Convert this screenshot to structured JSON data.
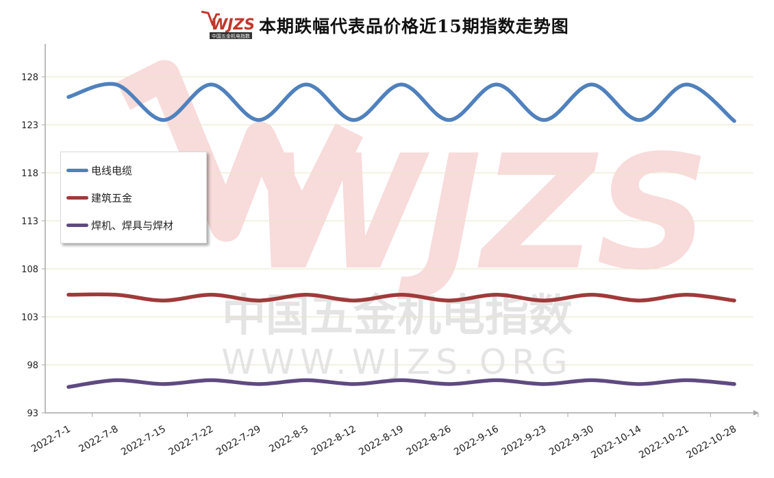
{
  "title": "本期跌幅代表品价格近15期指数走势图",
  "logo": {
    "brand": "WJZS",
    "subtitle": "中国五金机电指数",
    "url": "WWW.WJZS.ORG"
  },
  "watermark": {
    "brand": "WJZS",
    "line1": "中国五金机电指数",
    "line2": "WWW.WJZS.ORG"
  },
  "colors": {
    "axis": "#a6a6a6",
    "grid": "#e7e4c8",
    "tick_text": "#222222"
  },
  "chart_data": {
    "type": "line",
    "categories": [
      "2022-7-1",
      "2022-7-8",
      "2022-7-15",
      "2022-7-22",
      "2022-7-29",
      "2022-8-5",
      "2022-8-12",
      "2022-8-19",
      "2022-8-26",
      "2022-9-16",
      "2022-9-23",
      "2022-9-30",
      "2022-10-14",
      "2022-10-21",
      "2022-10-28"
    ],
    "ylim": [
      93,
      131
    ],
    "yticks": [
      93,
      98,
      103,
      108,
      113,
      118,
      123,
      128
    ],
    "grid": true,
    "legend_position": "left",
    "series": [
      {
        "name": "电线电缆",
        "color": "#4f81bd",
        "values": [
          125.9,
          127.2,
          123.5,
          127.2,
          123.5,
          127.2,
          123.5,
          127.2,
          123.5,
          127.2,
          123.5,
          127.2,
          123.5,
          127.2,
          123.4
        ]
      },
      {
        "name": "建筑五金",
        "color": "#a03a3a",
        "values": [
          105.3,
          105.3,
          104.7,
          105.3,
          104.7,
          105.3,
          104.7,
          105.3,
          104.7,
          105.3,
          104.7,
          105.3,
          104.7,
          105.3,
          104.7
        ]
      },
      {
        "name": "焊机、焊具与焊材",
        "color": "#5f4a80",
        "values": [
          95.7,
          96.4,
          96.0,
          96.4,
          96.0,
          96.4,
          96.0,
          96.4,
          96.0,
          96.4,
          96.0,
          96.4,
          96.0,
          96.4,
          96.0
        ]
      }
    ]
  }
}
